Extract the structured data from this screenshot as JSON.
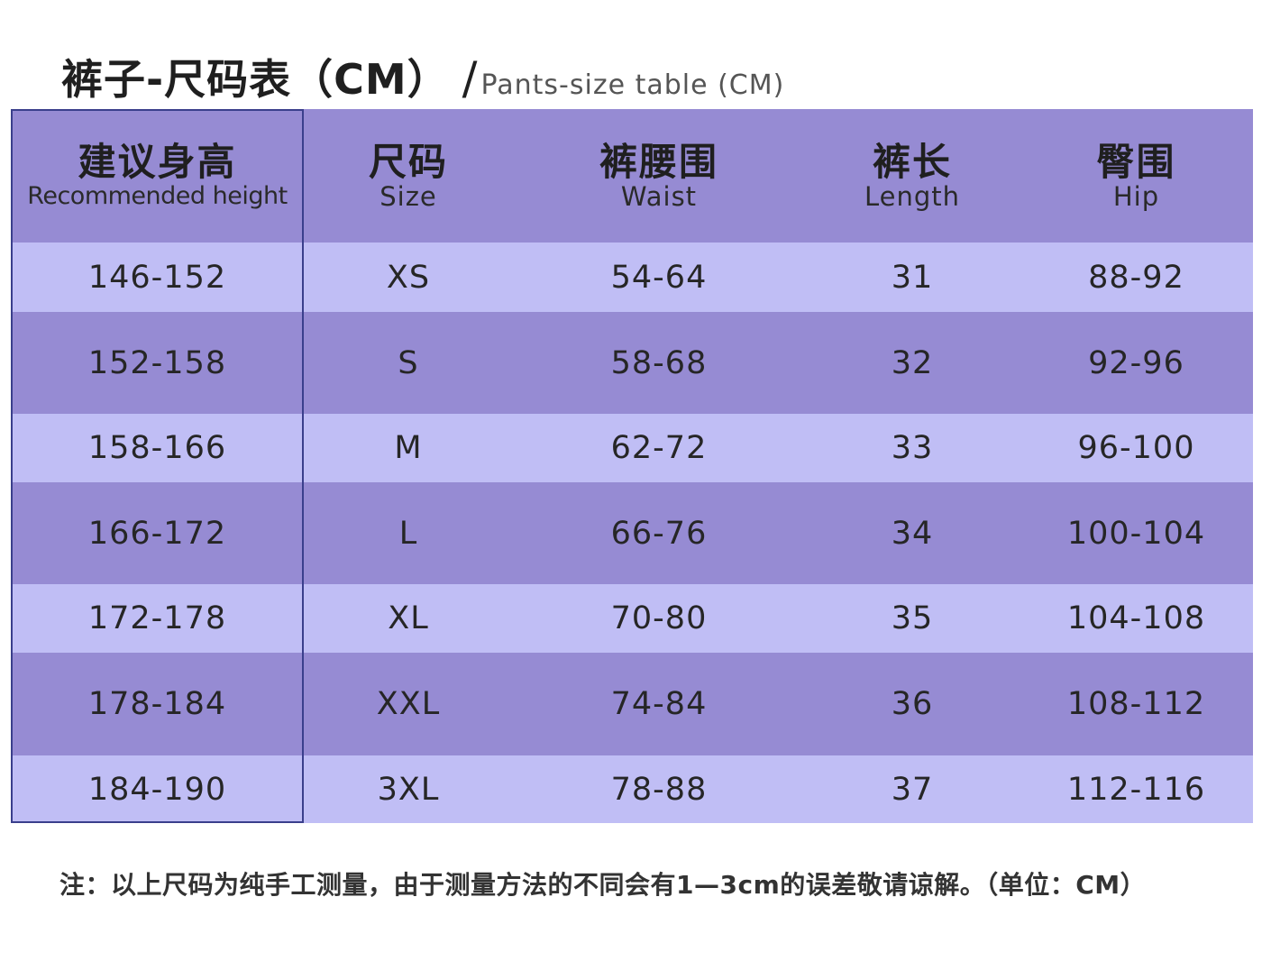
{
  "title": {
    "main": "裤子-尺码表（CM）",
    "slash": "/",
    "english": "Pants-size table (CM)"
  },
  "headers": [
    {
      "zh": "建议身高",
      "en": "Recommended height"
    },
    {
      "zh": "尺码",
      "en": "Size"
    },
    {
      "zh": "裤腰围",
      "en": "Waist"
    },
    {
      "zh": "裤长",
      "en": "Length"
    },
    {
      "zh": "臀围",
      "en": "Hip"
    }
  ],
  "rows": [
    {
      "height": "146-152",
      "size": "XS",
      "waist": "54-64",
      "length": "31",
      "hip": "88-92"
    },
    {
      "height": "152-158",
      "size": "S",
      "waist": "58-68",
      "length": "32",
      "hip": "92-96"
    },
    {
      "height": "158-166",
      "size": "M",
      "waist": "62-72",
      "length": "33",
      "hip": "96-100"
    },
    {
      "height": "166-172",
      "size": "L",
      "waist": "66-76",
      "length": "34",
      "hip": "100-104"
    },
    {
      "height": "172-178",
      "size": "XL",
      "waist": "70-80",
      "length": "35",
      "hip": "104-108"
    },
    {
      "height": "178-184",
      "size": "XXL",
      "waist": "74-84",
      "length": "36",
      "hip": "108-112"
    },
    {
      "height": "184-190",
      "size": "3XL",
      "waist": "78-88",
      "length": "37",
      "hip": "112-116"
    }
  ],
  "note": "注：以上尺码为纯手工测量，由于测量方法的不同会有1—3cm的误差敬请谅解。（单位：CM）",
  "colors": {
    "dark_row": "#968bd3",
    "light_row": "#c0bef5",
    "frame": "#3a3f8c"
  }
}
